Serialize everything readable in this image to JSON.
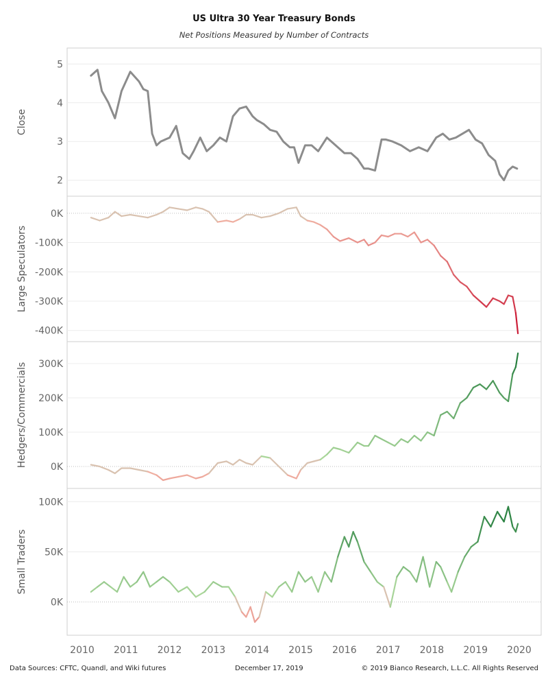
{
  "header": {
    "title": "US Ultra 30 Year Treasury Bonds",
    "subtitle": "Net Positions Measured by Number of Contracts"
  },
  "footer": {
    "sources": "Data Sources: CFTC, Quandl, and Wiki futures",
    "date": "December 17, 2019",
    "copyright": "© 2019 Bianco Research, L.L.C. All Rights Reserved"
  },
  "colors": {
    "close_line": "#8c8c8c",
    "positive_light": "#b7dfa3",
    "positive_dark": "#1f7a3a",
    "negative_light": "#f2b9a8",
    "negative_dark": "#c8102e",
    "neutral": "#d9c2b0"
  },
  "chart_data": {
    "type": "line",
    "x_axis": {
      "ticks": [
        "2010",
        "2011",
        "2012",
        "2013",
        "2014",
        "2015",
        "2016",
        "2017",
        "2018",
        "2019",
        "2020"
      ],
      "xlim": [
        2010,
        2020
      ]
    },
    "panels": [
      {
        "ylabel": "Close",
        "ylim": [
          1.8,
          5.2
        ],
        "tick_values": [
          2,
          3,
          4,
          5
        ],
        "tick_labels": [
          "2",
          "3",
          "4",
          "5"
        ],
        "zero_line": false,
        "x": [
          2010.2,
          2010.35,
          2010.45,
          2010.6,
          2010.75,
          2010.9,
          2011.1,
          2011.3,
          2011.4,
          2011.5,
          2011.6,
          2011.7,
          2011.8,
          2011.9,
          2012.0,
          2012.15,
          2012.3,
          2012.45,
          2012.55,
          2012.7,
          2012.85,
          2013.0,
          2013.15,
          2013.3,
          2013.45,
          2013.6,
          2013.75,
          2013.9,
          2014.0,
          2014.15,
          2014.3,
          2014.45,
          2014.6,
          2014.75,
          2014.85,
          2014.95,
          2015.1,
          2015.25,
          2015.4,
          2015.6,
          2015.8,
          2016.0,
          2016.15,
          2016.3,
          2016.45,
          2016.55,
          2016.7,
          2016.85,
          2016.95,
          2017.1,
          2017.3,
          2017.5,
          2017.7,
          2017.9,
          2018.1,
          2018.25,
          2018.4,
          2018.55,
          2018.7,
          2018.85,
          2019.0,
          2019.15,
          2019.3,
          2019.45,
          2019.55,
          2019.65,
          2019.75,
          2019.85,
          2019.95
        ],
        "y": [
          4.7,
          4.85,
          4.3,
          4.0,
          3.6,
          4.3,
          4.8,
          4.55,
          4.35,
          4.3,
          3.2,
          2.9,
          3.0,
          3.05,
          3.1,
          3.4,
          2.7,
          2.55,
          2.75,
          3.1,
          2.75,
          2.9,
          3.1,
          3.0,
          3.65,
          3.85,
          3.9,
          3.65,
          3.55,
          3.45,
          3.3,
          3.25,
          3.0,
          2.85,
          2.85,
          2.45,
          2.9,
          2.9,
          2.75,
          3.1,
          2.9,
          2.7,
          2.7,
          2.55,
          2.3,
          2.3,
          2.25,
          3.05,
          3.05,
          3.0,
          2.9,
          2.75,
          2.85,
          2.75,
          3.1,
          3.2,
          3.05,
          3.1,
          3.2,
          3.3,
          3.05,
          2.95,
          2.65,
          2.5,
          2.15,
          2.0,
          2.25,
          2.35,
          2.3
        ]
      },
      {
        "ylabel": "Large Speculators",
        "ylim": [
          -410000,
          30000
        ],
        "tick_values": [
          0,
          -100000,
          -200000,
          -300000,
          -400000
        ],
        "tick_labels": [
          "0K",
          "-100K",
          "-200K",
          "-300K",
          "-400K"
        ],
        "zero_line": true,
        "x": [
          2010.2,
          2010.4,
          2010.6,
          2010.75,
          2010.9,
          2011.1,
          2011.3,
          2011.5,
          2011.7,
          2011.85,
          2012.0,
          2012.2,
          2012.4,
          2012.6,
          2012.75,
          2012.9,
          2013.1,
          2013.3,
          2013.45,
          2013.6,
          2013.75,
          2013.9,
          2014.1,
          2014.3,
          2014.5,
          2014.7,
          2014.9,
          2015.0,
          2015.15,
          2015.3,
          2015.45,
          2015.6,
          2015.75,
          2015.9,
          2016.1,
          2016.3,
          2016.45,
          2016.55,
          2016.7,
          2016.85,
          2017.0,
          2017.15,
          2017.3,
          2017.45,
          2017.6,
          2017.75,
          2017.9,
          2018.05,
          2018.2,
          2018.35,
          2018.5,
          2018.65,
          2018.8,
          2018.95,
          2019.1,
          2019.25,
          2019.4,
          2019.55,
          2019.65,
          2019.75,
          2019.85,
          2019.92,
          2019.97
        ],
        "y": [
          -15000,
          -25000,
          -15000,
          5000,
          -10000,
          -5000,
          -10000,
          -15000,
          -5000,
          5000,
          20000,
          15000,
          10000,
          20000,
          15000,
          5000,
          -30000,
          -25000,
          -30000,
          -20000,
          -5000,
          -5000,
          -15000,
          -10000,
          0,
          15000,
          20000,
          -10000,
          -25000,
          -30000,
          -40000,
          -55000,
          -80000,
          -95000,
          -85000,
          -100000,
          -90000,
          -110000,
          -100000,
          -75000,
          -80000,
          -70000,
          -70000,
          -80000,
          -65000,
          -100000,
          -90000,
          -110000,
          -145000,
          -165000,
          -210000,
          -235000,
          -250000,
          -280000,
          -300000,
          -320000,
          -290000,
          -300000,
          -310000,
          -280000,
          -285000,
          -340000,
          -410000
        ]
      },
      {
        "ylabel": "Hedgers/Commercials",
        "ylim": [
          -40000,
          340000
        ],
        "tick_values": [
          0,
          100000,
          200000,
          300000
        ],
        "tick_labels": [
          "0K",
          "100K",
          "200K",
          "300K"
        ],
        "zero_line": true,
        "x": [
          2010.2,
          2010.4,
          2010.6,
          2010.75,
          2010.9,
          2011.1,
          2011.3,
          2011.5,
          2011.7,
          2011.85,
          2012.0,
          2012.2,
          2012.4,
          2012.6,
          2012.75,
          2012.9,
          2013.1,
          2013.3,
          2013.45,
          2013.6,
          2013.75,
          2013.9,
          2014.1,
          2014.3,
          2014.5,
          2014.7,
          2014.9,
          2015.0,
          2015.15,
          2015.3,
          2015.45,
          2015.6,
          2015.75,
          2015.9,
          2016.1,
          2016.3,
          2016.45,
          2016.55,
          2016.7,
          2016.85,
          2017.0,
          2017.15,
          2017.3,
          2017.45,
          2017.6,
          2017.75,
          2017.9,
          2018.05,
          2018.2,
          2018.35,
          2018.5,
          2018.65,
          2018.8,
          2018.95,
          2019.1,
          2019.25,
          2019.4,
          2019.55,
          2019.65,
          2019.75,
          2019.85,
          2019.92,
          2019.97
        ],
        "y": [
          5000,
          0,
          -10000,
          -20000,
          -5000,
          -5000,
          -10000,
          -15000,
          -25000,
          -40000,
          -35000,
          -30000,
          -25000,
          -35000,
          -30000,
          -20000,
          10000,
          15000,
          5000,
          20000,
          10000,
          5000,
          30000,
          25000,
          0,
          -25000,
          -35000,
          -10000,
          10000,
          15000,
          20000,
          35000,
          55000,
          50000,
          40000,
          70000,
          60000,
          60000,
          90000,
          80000,
          70000,
          60000,
          80000,
          70000,
          90000,
          75000,
          100000,
          90000,
          150000,
          160000,
          140000,
          185000,
          200000,
          230000,
          240000,
          225000,
          250000,
          215000,
          200000,
          190000,
          270000,
          290000,
          330000
        ]
      },
      {
        "ylabel": "Small Traders",
        "ylim": [
          -25000,
          105000
        ],
        "tick_values": [
          0,
          50000,
          100000
        ],
        "tick_labels": [
          "0K",
          "50K",
          "100K"
        ],
        "zero_line": true,
        "x": [
          2010.2,
          2010.35,
          2010.5,
          2010.65,
          2010.8,
          2010.95,
          2011.1,
          2011.25,
          2011.4,
          2011.55,
          2011.7,
          2011.85,
          2012.0,
          2012.2,
          2012.4,
          2012.6,
          2012.8,
          2013.0,
          2013.2,
          2013.35,
          2013.5,
          2013.65,
          2013.75,
          2013.85,
          2013.95,
          2014.05,
          2014.2,
          2014.35,
          2014.5,
          2014.65,
          2014.8,
          2014.95,
          2015.1,
          2015.25,
          2015.4,
          2015.55,
          2015.7,
          2015.85,
          2016.0,
          2016.1,
          2016.2,
          2016.3,
          2016.45,
          2016.6,
          2016.75,
          2016.9,
          2017.05,
          2017.2,
          2017.35,
          2017.5,
          2017.65,
          2017.8,
          2017.95,
          2018.1,
          2018.2,
          2018.35,
          2018.45,
          2018.6,
          2018.75,
          2018.9,
          2019.05,
          2019.2,
          2019.35,
          2019.5,
          2019.65,
          2019.75,
          2019.85,
          2019.92,
          2019.97
        ],
        "y": [
          10000,
          15000,
          20000,
          15000,
          10000,
          25000,
          15000,
          20000,
          30000,
          15000,
          20000,
          25000,
          20000,
          10000,
          15000,
          5000,
          10000,
          20000,
          15000,
          15000,
          5000,
          -10000,
          -15000,
          -5000,
          -20000,
          -15000,
          10000,
          5000,
          15000,
          20000,
          10000,
          30000,
          20000,
          25000,
          10000,
          30000,
          20000,
          45000,
          65000,
          55000,
          70000,
          60000,
          40000,
          30000,
          20000,
          15000,
          -5000,
          25000,
          35000,
          30000,
          20000,
          45000,
          15000,
          40000,
          35000,
          20000,
          10000,
          30000,
          45000,
          55000,
          60000,
          85000,
          75000,
          90000,
          80000,
          95000,
          75000,
          70000,
          78000
        ]
      }
    ]
  }
}
